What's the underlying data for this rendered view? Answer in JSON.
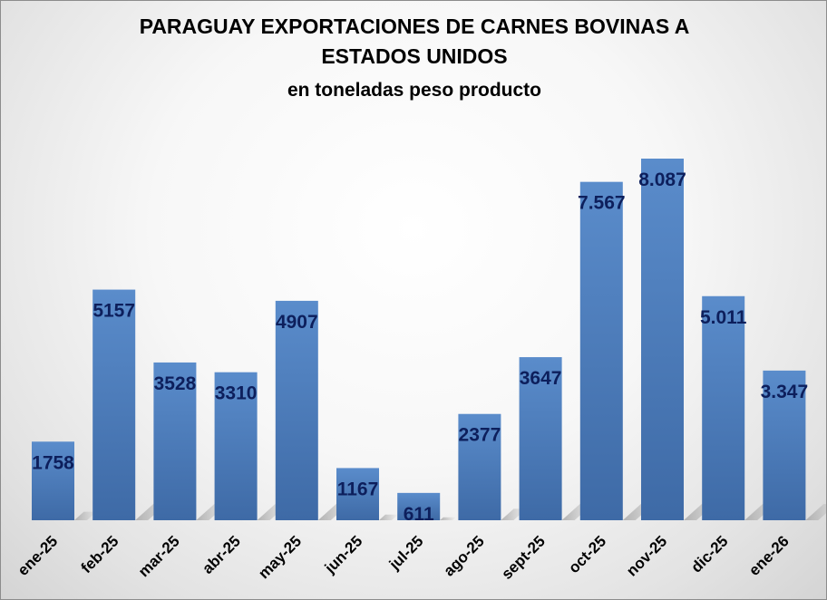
{
  "chart_data": {
    "type": "bar",
    "title_line1": "PARAGUAY EXPORTACIONES DE CARNES BOVINAS A",
    "title_line2": "ESTADOS UNIDOS",
    "subtitle": "en toneladas peso producto",
    "categories": [
      "ene-25",
      "feb-25",
      "mar-25",
      "abr-25",
      "may-25",
      "jun-25",
      "jul-25",
      "ago-25",
      "sept-25",
      "oct-25",
      "nov-25",
      "dic-25",
      "ene-26"
    ],
    "values": [
      1758,
      5157,
      3528,
      3310,
      4907,
      1167,
      611,
      2377,
      3647,
      7567,
      8087,
      5011,
      3347
    ],
    "data_labels": [
      "1758",
      "5157",
      "3528",
      "3310",
      "4907",
      "1167",
      "611",
      "2377",
      "3647",
      "7.567",
      "8.087",
      "5.011",
      "3.347"
    ],
    "bar_color": "#4f81bd",
    "label_color": "#0d1f5c",
    "grid": false,
    "legend": "none"
  }
}
